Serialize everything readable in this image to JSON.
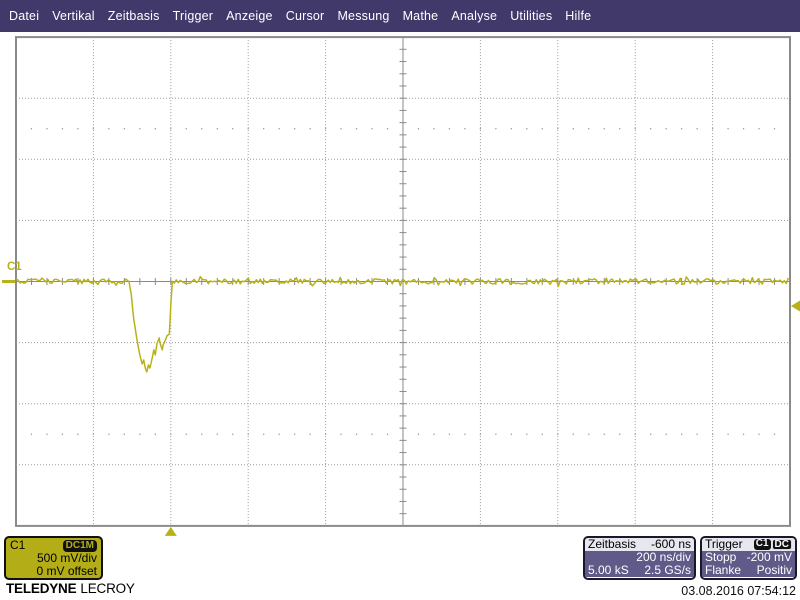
{
  "menu": {
    "items": [
      "Datei",
      "Vertikal",
      "Zeitbasis",
      "Trigger",
      "Anzeige",
      "Cursor",
      "Messung",
      "Mathe",
      "Analyse",
      "Utilities",
      "Hilfe"
    ]
  },
  "channel_indicator": {
    "label": "C1"
  },
  "channel_box": {
    "channel": "C1",
    "coupling": "DC1M",
    "scale": "500 mV/div",
    "offset": "0 mV offset"
  },
  "timebase_box": {
    "title": "Zeitbasis",
    "delay": "-600 ns",
    "scale": "200 ns/div",
    "samples": "5.00 kS",
    "rate": "2.5 GS/s"
  },
  "trigger_box": {
    "title": "Trigger",
    "source_badge": "C1",
    "coupling_badge": "DC",
    "mode": "Stopp",
    "level": "-200 mV",
    "slope_label": "Flanke",
    "slope": "Positiv"
  },
  "branding": {
    "brand_bold": "TELEDYNE",
    "brand_light": "LECROY"
  },
  "statusbar": {
    "datetime": "03.08.2016 07:54:12"
  },
  "colors": {
    "menubar_bg": "#42396b",
    "menu_text": "#ffffff",
    "trace": "#b8b218",
    "channel_bg": "#b3ae18",
    "badge_text_olive": "#b3ae18",
    "purple_body": "#5f5a88",
    "box_header_bg": "#e7e7f0",
    "grid_line": "#9a9a9a",
    "grid_border": "#8a8a8a",
    "background": "#ffffff"
  },
  "chart_data": {
    "type": "line",
    "title": "Channel C1 waveform (negative pulse)",
    "x_axis": {
      "units": "ns",
      "scale_per_div": 200,
      "divisions": 10,
      "trigger_delay_ns": -600
    },
    "y_axis": {
      "units": "mV",
      "scale_per_div": 500,
      "divisions": 8,
      "offset_mV": 0
    },
    "baseline_mV": 0,
    "noise_peak_mV": 25,
    "trigger": {
      "level_mV": -200,
      "slope": "Positiv",
      "position_div": -3.0
    },
    "pulse_points_div_mV": [
      [
        -3.54,
        0
      ],
      [
        -3.51,
        -110
      ],
      [
        -3.48,
        -299
      ],
      [
        -3.44,
        -462
      ],
      [
        -3.4,
        -601
      ],
      [
        -3.37,
        -675
      ],
      [
        -3.35,
        -642
      ],
      [
        -3.33,
        -708
      ],
      [
        -3.31,
        -740
      ],
      [
        -3.29,
        -683
      ],
      [
        -3.27,
        -708
      ],
      [
        -3.24,
        -626
      ],
      [
        -3.22,
        -560
      ],
      [
        -3.2,
        -601
      ],
      [
        -3.18,
        -511
      ],
      [
        -3.15,
        -462
      ],
      [
        -3.14,
        -503
      ],
      [
        -3.11,
        -560
      ],
      [
        -3.1,
        -519
      ],
      [
        -3.07,
        -478
      ],
      [
        -3.05,
        -446
      ],
      [
        -3.02,
        -429
      ],
      [
        -3.01,
        -331
      ],
      [
        -3.0,
        -192
      ],
      [
        -2.98,
        0
      ]
    ]
  }
}
